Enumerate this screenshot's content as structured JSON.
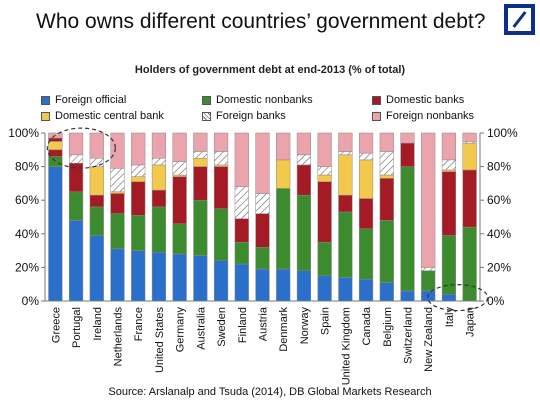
{
  "slide": {
    "title": "Who owns different countries’ government debt?",
    "source": "Source: Arslanalp and Tsuda (2014), DB Global Markets Research"
  },
  "colors": {
    "foreign_official": "#2a6fc9",
    "domestic_central_bank": "#f2c94c",
    "domestic_nonbanks": "#3c8c2f",
    "foreign_banks": "#ffffff",
    "domestic_banks": "#a51b25",
    "foreign_nonbanks": "#eba3ac",
    "logo": "#0b2f8a"
  },
  "chart_data": {
    "type": "bar",
    "stacked": true,
    "title": "Holders of government debt at end-2013 (% of total)",
    "ylim": [
      0,
      100
    ],
    "yticks": [
      "0%",
      "20%",
      "40%",
      "60%",
      "80%",
      "100%"
    ],
    "ytick_values": [
      0,
      20,
      40,
      60,
      80,
      100
    ],
    "secondary_y_axis": true,
    "grid": false,
    "legend_position": "top",
    "categories": [
      "Greece",
      "Portugal",
      "Ireland",
      "Netherlands",
      "France",
      "United States",
      "Germany",
      "Australia",
      "Sweden",
      "Finland",
      "Austria",
      "Denmark",
      "Norway",
      "Spain",
      "United Kingdom",
      "Canada",
      "Belgium",
      "Switzerland",
      "New Zealand",
      "Italy",
      "Japan"
    ],
    "series": [
      {
        "name": "Foreign official",
        "key": "foreign_official",
        "values": [
          80,
          48,
          39,
          31,
          30,
          29,
          28,
          27,
          24,
          22,
          19,
          19,
          18,
          15,
          14,
          13,
          11,
          6,
          6,
          4,
          0
        ]
      },
      {
        "name": "Domestic central bank",
        "key": "domestic_central_bank",
        "values": [
          0,
          0,
          0,
          0,
          0,
          0,
          0,
          0,
          0,
          0,
          0,
          0,
          0,
          0,
          0,
          0,
          0,
          0,
          0,
          0,
          0
        ]
      },
      {
        "name": "Domestic nonbanks",
        "key": "domestic_nonbanks",
        "values": [
          6,
          17,
          17,
          21,
          21,
          27,
          18,
          33,
          31,
          13,
          13,
          48,
          45,
          20,
          39,
          30,
          37,
          74,
          12,
          35,
          44
        ]
      },
      {
        "name": "Foreign banks",
        "key": "foreign_banks",
        "values": [
          0,
          0,
          0,
          0,
          0,
          0,
          0,
          0,
          0,
          0,
          0,
          0,
          0,
          0,
          0,
          0,
          0,
          0,
          0,
          0,
          0
        ]
      },
      {
        "name": "Domestic banks",
        "key": "domestic_banks",
        "values": [
          4,
          17,
          7,
          12,
          20,
          10,
          28,
          20,
          25,
          14,
          20,
          0,
          18,
          36,
          10,
          18,
          25,
          14,
          0,
          38,
          34
        ]
      },
      {
        "name": "Foreign nonbanks",
        "key": "foreign_nonbanks",
        "values": [
          10,
          18,
          37,
          36,
          29,
          34,
          26,
          20,
          20,
          51,
          48,
          33,
          19,
          29,
          37,
          39,
          27,
          6,
          82,
          23,
          22
        ]
      }
    ],
    "stack_detail": [
      [
        [
          "foreign_official",
          80
        ],
        [
          "domestic_nonbanks",
          6
        ],
        [
          "domestic_banks",
          4
        ],
        [
          "domestic_central_bank",
          5
        ],
        [
          "domestic_banks",
          2
        ],
        [
          "foreign_nonbanks",
          3
        ]
      ],
      [
        [
          "foreign_official",
          48
        ],
        [
          "domestic_nonbanks",
          17
        ],
        [
          "domestic_banks",
          17
        ],
        [
          "foreign_banks",
          5
        ],
        [
          "foreign_nonbanks",
          13
        ]
      ],
      [
        [
          "foreign_official",
          39
        ],
        [
          "domestic_nonbanks",
          17
        ],
        [
          "domestic_banks",
          7
        ],
        [
          "domestic_central_bank",
          17
        ],
        [
          "foreign_banks",
          5
        ],
        [
          "foreign_nonbanks",
          15
        ]
      ],
      [
        [
          "foreign_official",
          31
        ],
        [
          "domestic_nonbanks",
          21
        ],
        [
          "domestic_banks",
          12
        ],
        [
          "domestic_central_bank",
          1
        ],
        [
          "foreign_banks",
          14
        ],
        [
          "foreign_nonbanks",
          21
        ]
      ],
      [
        [
          "foreign_official",
          30
        ],
        [
          "domestic_nonbanks",
          21
        ],
        [
          "domestic_banks",
          20
        ],
        [
          "domestic_central_bank",
          3
        ],
        [
          "foreign_banks",
          7
        ],
        [
          "foreign_nonbanks",
          19
        ]
      ],
      [
        [
          "foreign_official",
          29
        ],
        [
          "domestic_nonbanks",
          27
        ],
        [
          "domestic_banks",
          10
        ],
        [
          "domestic_central_bank",
          15
        ],
        [
          "foreign_banks",
          4
        ],
        [
          "foreign_nonbanks",
          15
        ]
      ],
      [
        [
          "foreign_official",
          28
        ],
        [
          "domestic_nonbanks",
          18
        ],
        [
          "domestic_banks",
          28
        ],
        [
          "domestic_central_bank",
          1
        ],
        [
          "foreign_banks",
          8
        ],
        [
          "foreign_nonbanks",
          17
        ]
      ],
      [
        [
          "foreign_official",
          27
        ],
        [
          "domestic_nonbanks",
          33
        ],
        [
          "domestic_banks",
          20
        ],
        [
          "domestic_central_bank",
          5
        ],
        [
          "foreign_banks",
          4
        ],
        [
          "foreign_nonbanks",
          11
        ]
      ],
      [
        [
          "foreign_official",
          24
        ],
        [
          "domestic_nonbanks",
          31
        ],
        [
          "domestic_banks",
          25
        ],
        [
          "domestic_central_bank",
          1
        ],
        [
          "foreign_banks",
          8
        ],
        [
          "foreign_nonbanks",
          11
        ]
      ],
      [
        [
          "foreign_official",
          22
        ],
        [
          "domestic_nonbanks",
          13
        ],
        [
          "domestic_banks",
          14
        ],
        [
          "foreign_banks",
          19
        ],
        [
          "foreign_nonbanks",
          32
        ]
      ],
      [
        [
          "foreign_official",
          19
        ],
        [
          "domestic_nonbanks",
          13
        ],
        [
          "domestic_banks",
          20
        ],
        [
          "foreign_banks",
          12
        ],
        [
          "foreign_nonbanks",
          36
        ]
      ],
      [
        [
          "foreign_official",
          19
        ],
        [
          "domestic_nonbanks",
          48
        ],
        [
          "domestic_central_bank",
          17
        ],
        [
          "foreign_nonbanks",
          16
        ]
      ],
      [
        [
          "foreign_official",
          18
        ],
        [
          "domestic_nonbanks",
          45
        ],
        [
          "domestic_banks",
          18
        ],
        [
          "foreign_banks",
          6
        ],
        [
          "foreign_nonbanks",
          13
        ]
      ],
      [
        [
          "foreign_official",
          15
        ],
        [
          "domestic_nonbanks",
          20
        ],
        [
          "domestic_banks",
          36
        ],
        [
          "domestic_central_bank",
          4
        ],
        [
          "foreign_banks",
          5
        ],
        [
          "foreign_nonbanks",
          20
        ]
      ],
      [
        [
          "foreign_official",
          14
        ],
        [
          "domestic_nonbanks",
          39
        ],
        [
          "domestic_banks",
          10
        ],
        [
          "domestic_central_bank",
          24
        ],
        [
          "foreign_banks",
          2
        ],
        [
          "foreign_nonbanks",
          11
        ]
      ],
      [
        [
          "foreign_official",
          13
        ],
        [
          "domestic_nonbanks",
          30
        ],
        [
          "domestic_banks",
          18
        ],
        [
          "domestic_central_bank",
          23
        ],
        [
          "foreign_banks",
          4
        ],
        [
          "foreign_nonbanks",
          12
        ]
      ],
      [
        [
          "foreign_official",
          11
        ],
        [
          "domestic_nonbanks",
          37
        ],
        [
          "domestic_banks",
          25
        ],
        [
          "domestic_central_bank",
          2
        ],
        [
          "foreign_banks",
          14
        ],
        [
          "foreign_nonbanks",
          11
        ]
      ],
      [
        [
          "foreign_official",
          6
        ],
        [
          "domestic_nonbanks",
          74
        ],
        [
          "domestic_banks",
          14
        ],
        [
          "foreign_nonbanks",
          6
        ]
      ],
      [
        [
          "foreign_official",
          6
        ],
        [
          "domestic_nonbanks",
          12
        ],
        [
          "foreign_banks",
          2
        ],
        [
          "foreign_nonbanks",
          80
        ]
      ],
      [
        [
          "foreign_official",
          4
        ],
        [
          "domestic_nonbanks",
          35
        ],
        [
          "domestic_banks",
          38
        ],
        [
          "domestic_central_bank",
          1
        ],
        [
          "foreign_banks",
          6
        ],
        [
          "foreign_nonbanks",
          16
        ]
      ],
      [
        [
          "domestic_nonbanks",
          44
        ],
        [
          "domestic_banks",
          34
        ],
        [
          "domestic_central_bank",
          16
        ],
        [
          "foreign_banks",
          1
        ],
        [
          "foreign_nonbanks",
          5
        ]
      ]
    ],
    "highlighted_categories": [
      "Greece",
      "Japan"
    ]
  }
}
